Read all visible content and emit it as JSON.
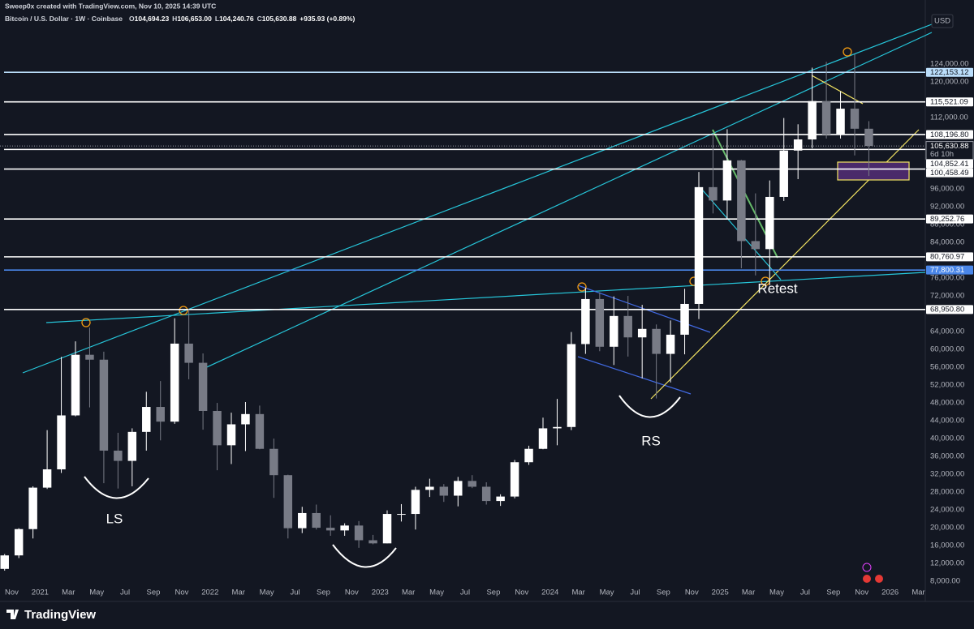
{
  "header": {
    "author_line": "Sweep0x created with TradingView.com, Nov 10, 2025 14:39 UTC"
  },
  "footer": {
    "brand": "TradingView"
  },
  "chart_data": {
    "type": "candlestick",
    "title": "Bitcoin / U.S. Dollar · 1W · Coinbase",
    "ohlc_legend": [
      {
        "key": "O",
        "label": "104,694.23"
      },
      {
        "key": "H",
        "label": "106,653.00"
      },
      {
        "key": "L",
        "label": "104,240.76"
      },
      {
        "key": "C",
        "label": "105,630.88"
      }
    ],
    "change": "+935.93 (+0.89%)",
    "currency": "USD",
    "up_color": "#ffffff",
    "down_color": "#787b86",
    "x": [
      "2020-10",
      "2020-11",
      "2020-12",
      "2021-01",
      "2021-02",
      "2021-03",
      "2021-04",
      "2021-05",
      "2021-06",
      "2021-07",
      "2021-08",
      "2021-09",
      "2021-10",
      "2021-11",
      "2021-12",
      "2022-01",
      "2022-02",
      "2022-03",
      "2022-04",
      "2022-05",
      "2022-06",
      "2022-07",
      "2022-08",
      "2022-09",
      "2022-10",
      "2022-11",
      "2022-12",
      "2023-01",
      "2023-02",
      "2023-03",
      "2023-04",
      "2023-05",
      "2023-06",
      "2023-07",
      "2023-08",
      "2023-09",
      "2023-10",
      "2023-11",
      "2023-12",
      "2024-01",
      "2024-02",
      "2024-03",
      "2024-04",
      "2024-05",
      "2024-06",
      "2024-07",
      "2024-08",
      "2024-09",
      "2024-10",
      "2024-11",
      "2024-12",
      "2025-01",
      "2025-02",
      "2025-03",
      "2025-04",
      "2025-05",
      "2025-06",
      "2025-07",
      "2025-08",
      "2025-09",
      "2025-10",
      "2025-11"
    ],
    "open": [
      10780,
      13800,
      19700,
      29000,
      33100,
      45200,
      58800,
      57700,
      37300,
      35000,
      41500,
      47100,
      43800,
      61300,
      57000,
      46200,
      38500,
      43200,
      45500,
      37700,
      31800,
      19900,
      23300,
      20000,
      19400,
      20500,
      17200,
      16500,
      23100,
      23100,
      28500,
      29200,
      27200,
      30500,
      29200,
      26000,
      27000,
      34700,
      37700,
      42300,
      42600,
      61200,
      71300,
      60600,
      67500,
      62700,
      64600,
      59000,
      63300,
      70200,
      96400,
      93400,
      102400,
      84300,
      82500,
      94200,
      104600,
      107100,
      115700,
      108200,
      114000,
      109500
    ],
    "high": [
      14100,
      19900,
      29300,
      41900,
      58300,
      61800,
      64900,
      59500,
      41300,
      42300,
      50500,
      52900,
      67000,
      69000,
      59100,
      48000,
      45800,
      48200,
      47400,
      40000,
      31900,
      24700,
      25200,
      22800,
      21000,
      21500,
      18400,
      23900,
      25300,
      29200,
      31000,
      29800,
      31400,
      31800,
      30200,
      27500,
      35200,
      38400,
      44700,
      48900,
      63900,
      73800,
      72800,
      71900,
      72000,
      70000,
      65600,
      66500,
      73600,
      99800,
      108300,
      109400,
      102500,
      95000,
      97900,
      111900,
      110500,
      123200,
      124500,
      117900,
      126200,
      111200
    ],
    "low": [
      10380,
      13200,
      17600,
      28700,
      32300,
      45000,
      47000,
      30000,
      28800,
      29300,
      37300,
      39600,
      43300,
      53300,
      42000,
      32900,
      34300,
      37200,
      37600,
      26700,
      17600,
      18800,
      19600,
      18200,
      18200,
      15500,
      16300,
      16500,
      21400,
      19600,
      26900,
      25800,
      24800,
      28900,
      25200,
      24900,
      26600,
      34100,
      37600,
      38500,
      41900,
      59000,
      59600,
      56500,
      58400,
      53500,
      49000,
      52600,
      58900,
      66800,
      90500,
      89200,
      78200,
      76600,
      74400,
      93300,
      98200,
      105100,
      107300,
      107300,
      103500,
      98900
    ],
    "close": [
      13800,
      19700,
      29000,
      33100,
      45200,
      58800,
      57700,
      37300,
      35000,
      41500,
      47100,
      43800,
      61300,
      57000,
      46200,
      38500,
      43200,
      45500,
      37700,
      31800,
      19900,
      23300,
      20000,
      19400,
      20500,
      17200,
      16500,
      23100,
      23100,
      28500,
      29200,
      27200,
      30500,
      29200,
      26000,
      27000,
      34700,
      37700,
      42300,
      42600,
      61200,
      71300,
      60600,
      67500,
      62700,
      64600,
      59000,
      63300,
      70200,
      96400,
      93400,
      102400,
      84300,
      82500,
      94200,
      104600,
      107100,
      115700,
      108200,
      114000,
      109500,
      105630.88
    ],
    "xlim": [
      "2020-10",
      "2026-04"
    ],
    "xticks": [
      {
        "value": "2020-11",
        "label": "Nov"
      },
      {
        "value": "2021-01",
        "label": "2021"
      },
      {
        "value": "2021-03",
        "label": "Mar"
      },
      {
        "value": "2021-05",
        "label": "May"
      },
      {
        "value": "2021-07",
        "label": "Jul"
      },
      {
        "value": "2021-09",
        "label": "Sep"
      },
      {
        "value": "2021-11",
        "label": "Nov"
      },
      {
        "value": "2022-01",
        "label": "2022"
      },
      {
        "value": "2022-03",
        "label": "Mar"
      },
      {
        "value": "2022-05",
        "label": "May"
      },
      {
        "value": "2022-07",
        "label": "Jul"
      },
      {
        "value": "2022-09",
        "label": "Sep"
      },
      {
        "value": "2022-11",
        "label": "Nov"
      },
      {
        "value": "2023-01",
        "label": "2023"
      },
      {
        "value": "2023-03",
        "label": "Mar"
      },
      {
        "value": "2023-05",
        "label": "May"
      },
      {
        "value": "2023-07",
        "label": "Jul"
      },
      {
        "value": "2023-09",
        "label": "Sep"
      },
      {
        "value": "2023-11",
        "label": "Nov"
      },
      {
        "value": "2024-01",
        "label": "2024"
      },
      {
        "value": "2024-03",
        "label": "Mar"
      },
      {
        "value": "2024-05",
        "label": "May"
      },
      {
        "value": "2024-07",
        "label": "Jul"
      },
      {
        "value": "2024-09",
        "label": "Sep"
      },
      {
        "value": "2024-11",
        "label": "Nov"
      },
      {
        "value": "2025-01",
        "label": "2025"
      },
      {
        "value": "2025-03",
        "label": "Mar"
      },
      {
        "value": "2025-05",
        "label": "May"
      },
      {
        "value": "2025-07",
        "label": "Jul"
      },
      {
        "value": "2025-09",
        "label": "Sep"
      },
      {
        "value": "2025-11",
        "label": "Nov"
      },
      {
        "value": "2026-01",
        "label": "2026"
      },
      {
        "value": "2026-03",
        "label": "Mar"
      }
    ],
    "ylim": [
      4200,
      135100
    ],
    "yticks": [
      {
        "value": 124000,
        "label": "124,000.00"
      },
      {
        "value": 120000,
        "label": "120,000.00"
      },
      {
        "value": 112000,
        "label": "112,000.00"
      },
      {
        "value": 96000,
        "label": "96,000.00"
      },
      {
        "value": 92000,
        "label": "92,000.00"
      },
      {
        "value": 88000,
        "label": "88,000.00"
      },
      {
        "value": 84000,
        "label": "84,000.00"
      },
      {
        "value": 76000,
        "label": "76,000.00"
      },
      {
        "value": 72000,
        "label": "72,000.00"
      },
      {
        "value": 64000,
        "label": "64,000.00"
      },
      {
        "value": 60000,
        "label": "60,000.00"
      },
      {
        "value": 56000,
        "label": "56,000.00"
      },
      {
        "value": 52000,
        "label": "52,000.00"
      },
      {
        "value": 48000,
        "label": "48,000.00"
      },
      {
        "value": 44000,
        "label": "44,000.00"
      },
      {
        "value": 40000,
        "label": "40,000.00"
      },
      {
        "value": 36000,
        "label": "36,000.00"
      },
      {
        "value": 32000,
        "label": "32,000.00"
      },
      {
        "value": 28000,
        "label": "28,000.00"
      },
      {
        "value": 24000,
        "label": "24,000.00"
      },
      {
        "value": 20000,
        "label": "20,000.00"
      },
      {
        "value": 16000,
        "label": "16,000.00"
      },
      {
        "value": 12000,
        "label": "12,000.00"
      },
      {
        "value": 8000,
        "label": "8,000.00"
      }
    ],
    "grid": false,
    "price_lines": [
      {
        "value": 122153.12,
        "label": "122,153.12",
        "color": "#bbdefb"
      },
      {
        "value": 115521.09,
        "label": "115,521.09",
        "color": "#ffffff"
      },
      {
        "value": 108196.8,
        "label": "108,196.80",
        "color": "#ffffff"
      },
      {
        "value": 104852.41,
        "label": "104,852.41",
        "color": "#ffffff"
      },
      {
        "value": 100458.49,
        "label": "100,458.49",
        "color": "#ffffff"
      },
      {
        "value": 89252.76,
        "label": "89,252.76",
        "color": "#ffffff"
      },
      {
        "value": 80760.97,
        "label": "80,760.97",
        "color": "#ffffff"
      },
      {
        "value": 77800.31,
        "label": "77,800.31",
        "color": "#4a86e8"
      },
      {
        "value": 68950.8,
        "label": "68,950.80",
        "color": "#ffffff"
      }
    ],
    "last_price": {
      "value": 105630.88,
      "label": "105,630.88",
      "countdown": "6d 10h"
    },
    "annotations": [
      "LS",
      "RS",
      "Retest"
    ]
  }
}
